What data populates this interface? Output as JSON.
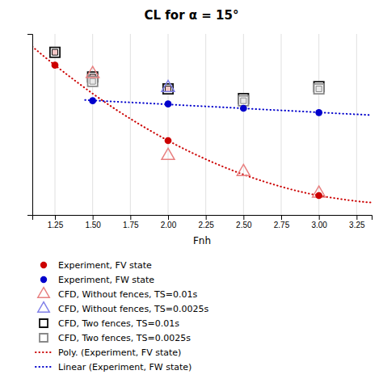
{
  "chart_data": {
    "type": "scatter",
    "title": "CL for α = 15°",
    "x_label": "Fnh",
    "xlim": [
      1.1,
      3.35
    ],
    "ylim": [
      0.18,
      1.02
    ],
    "xticks": [
      1.25,
      {
        "value": 1.5,
        "label": "1.50"
      },
      1.75,
      {
        "value": 2.0,
        "label": "2.00"
      },
      2.25,
      {
        "value": 2.5,
        "label": "2.50"
      },
      2.75,
      {
        "value": 3.0,
        "label": "3.00"
      },
      3.25
    ],
    "yticks": [],
    "tick_labels": "x",
    "grid": true,
    "series": [
      {
        "name": "Experiment, FV state",
        "type": "scatter",
        "marker": "circle",
        "color": "#cc0000",
        "x": [
          1.25,
          2.0,
          3.0
        ],
        "values": [
          0.875,
          0.525,
          0.27
        ]
      },
      {
        "name": "Experiment, FW state",
        "type": "scatter",
        "marker": "circle",
        "color": "#0000cc",
        "x": [
          1.5,
          2.0,
          2.5,
          3.0
        ],
        "values": [
          0.71,
          0.695,
          0.675,
          0.655
        ]
      },
      {
        "name": "CFD, Without fences, TS=0.01s",
        "type": "scatter",
        "marker": "triangle",
        "color": "#e88080",
        "x": [
          1.5,
          2.0,
          2.5,
          3.0
        ],
        "values": [
          0.835,
          0.455,
          0.38,
          0.28
        ]
      },
      {
        "name": "CFD, Without fences, TS=0.0025s",
        "type": "scatter",
        "marker": "triangle",
        "color": "#8080e8",
        "x": [
          2.0
        ],
        "values": [
          0.77
        ]
      },
      {
        "name": "CFD, Two fences, TS=0.01s",
        "type": "scatter",
        "marker": "square",
        "color": "#111111",
        "x": [
          1.25,
          1.5,
          2.0,
          2.5,
          3.0
        ],
        "values": [
          0.935,
          0.82,
          0.765,
          0.72,
          0.775
        ]
      },
      {
        "name": "CFD, Two fences, TS=0.0025s",
        "type": "scatter",
        "marker": "square",
        "color": "#888888",
        "x": [
          1.5,
          2.5,
          3.0
        ],
        "values": [
          0.8,
          0.71,
          0.765
        ]
      },
      {
        "name": "Poly. (Experiment, FV state)",
        "type": "line",
        "line_style": "dotted",
        "color": "#cc0000",
        "x": [
          1.1,
          1.25,
          1.5,
          1.75,
          2.0,
          2.25,
          2.5,
          2.75,
          3.0,
          3.25,
          3.35
        ],
        "values": [
          0.9613,
          0.875,
          0.7432,
          0.6265,
          0.525,
          0.4386,
          0.3673,
          0.3111,
          0.27,
          0.244,
          0.2379
        ]
      },
      {
        "name": "Linear (Experiment, FW state)",
        "type": "line",
        "line_style": "dotted",
        "color": "#0000cc",
        "x": [
          1.45,
          3.35
        ],
        "values": [
          0.71335,
          0.64305
        ]
      }
    ]
  }
}
